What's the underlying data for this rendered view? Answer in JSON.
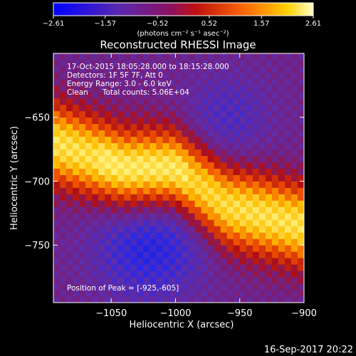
{
  "chart_data": {
    "type": "heatmap",
    "title": "Reconstructed RHESSI Image",
    "colorbar": {
      "ticks": [
        "-2.61",
        "-1.57",
        "-0.52",
        "0.52",
        "1.57",
        "2.61"
      ],
      "range": [
        -2.61,
        2.61
      ],
      "unit_label": "(photons cm⁻² s⁻¹ asec⁻²)"
    },
    "annotations": [
      "17-Oct-2015 18:05:28.000 to 18:15:28.000",
      "Detectors: 1F 5F 7F, Att 0",
      "Energy Range: 3.0 - 6.0 keV",
      "Clean      Total counts: 5.06E+04"
    ],
    "peak_label": "Position of Peak = [-925,-605]",
    "xlabel": "Heliocentric X (arcsec)",
    "ylabel": "Heliocentric Y (arcsec)",
    "xlim": [
      -1095,
      -900
    ],
    "ylim": [
      -795,
      -600
    ],
    "xticks": [
      -1050,
      -1000,
      -950,
      -900
    ],
    "xtick_labels": [
      "−1050",
      "−1000",
      "−950",
      "−900"
    ],
    "yticks": [
      -650,
      -700,
      -750
    ],
    "ytick_labels": [
      "−650",
      "−700",
      "−750"
    ],
    "colors": {
      "low": "#0000ff",
      "mid_low": "#6a2ca8",
      "mid": "#a01018",
      "high": "#ffa000",
      "max": "#ffffb0"
    },
    "emission_ridge": [
      {
        "x": -1095,
        "y": -670
      },
      {
        "x": -1040,
        "y": -690
      },
      {
        "x": -1000,
        "y": -690
      },
      {
        "x": -960,
        "y": -720
      },
      {
        "x": -900,
        "y": -735
      }
    ]
  },
  "footer_date": "16-Sep-2017 20:22"
}
